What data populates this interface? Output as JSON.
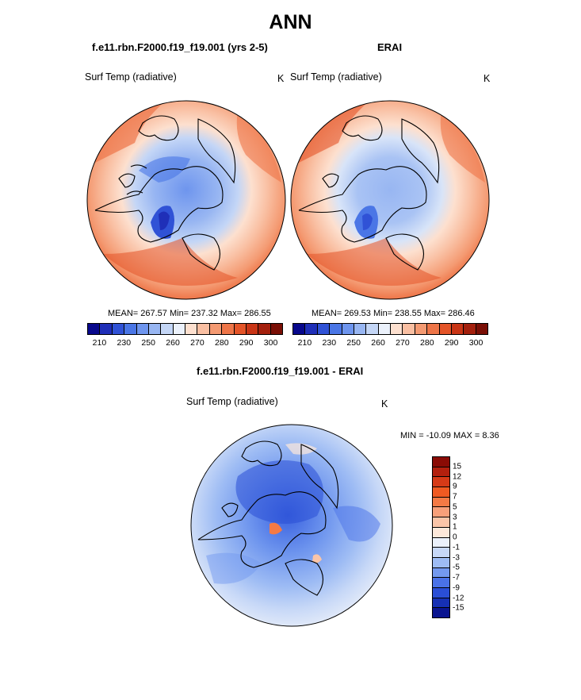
{
  "title": "ANN",
  "panels": [
    {
      "id": "model",
      "case_name": "f.e11.rbn.F2000.f19_f19.001 (yrs 2-5)",
      "variable": "Surf Temp (radiative)",
      "units": "K",
      "stats": "MEAN= 267.57  Min= 237.32  Max= 286.55"
    },
    {
      "id": "obs",
      "case_name": "ERAI",
      "variable": "Surf Temp (radiative)",
      "units": "K",
      "stats": "MEAN= 269.53  Min= 238.55  Max= 286.46"
    }
  ],
  "abs_colorbar": {
    "tick_labels": [
      "210",
      "230",
      "250",
      "260",
      "270",
      "280",
      "290",
      "300"
    ],
    "colors": [
      "#08088c",
      "#1f2fb8",
      "#3052d6",
      "#4a76e6",
      "#6e95ee",
      "#98b6f2",
      "#c4d6f6",
      "#ebf1fb",
      "#fde0cf",
      "#f9bfa2",
      "#f49a72",
      "#ee7548",
      "#e45428",
      "#c93516",
      "#a4200d",
      "#7a0f06"
    ]
  },
  "difference": {
    "title": "f.e11.rbn.F2000.f19_f19.001 - ERAI",
    "variable": "Surf Temp (radiative)",
    "units": "K",
    "min_max_text": "MIN = -10.09 MAX =   8.36",
    "colorbar": {
      "tick_labels": [
        "15",
        "12",
        "9",
        "7",
        "5",
        "3",
        "1",
        "0",
        "-1",
        "-3",
        "-5",
        "-7",
        "-9",
        "-12",
        "-15"
      ],
      "colors": [
        "#8a0b05",
        "#b3200e",
        "#d63a17",
        "#f05a22",
        "#f57a45",
        "#f8a07a",
        "#fbc5a8",
        "#fde8da",
        "#ebf1fb",
        "#c7d8f7",
        "#9ebcf4",
        "#7399ef",
        "#4a72e8",
        "#2a4ed6",
        "#1630b4",
        "#0a1590"
      ]
    }
  }
}
